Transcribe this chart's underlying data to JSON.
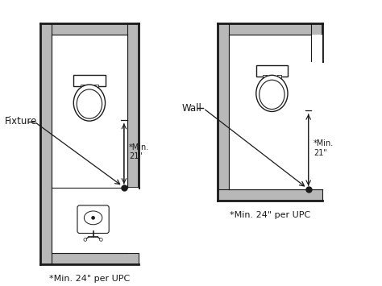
{
  "bg_color": "#ffffff",
  "wall_color": "#b8b8b8",
  "line_color": "#1a1a1a",
  "text_color": "#1a1a1a",
  "title_left": "*Min. 24\" per UPC",
  "title_right": "*Min. 24\" per UPC",
  "label_fixture": "Fixture",
  "label_wall": "Wall",
  "fig_width": 4.74,
  "fig_height": 3.55,
  "dpi": 100
}
